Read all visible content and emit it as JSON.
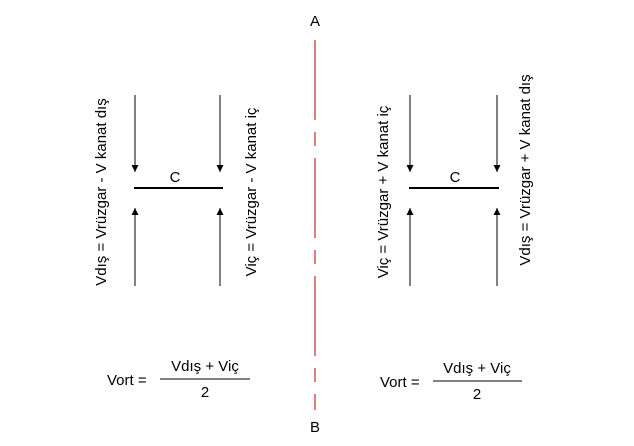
{
  "points": {
    "top": "A",
    "bottom": "B"
  },
  "left": {
    "center": "C",
    "outer_label": "Vdış = Vrüzgar - V kanat dış",
    "inner_label": "Viç = Vrüzgar - V kanat iç",
    "formula": {
      "lhs": "Vort =",
      "numerator": "Vdış + Viç",
      "denominator": "2"
    }
  },
  "right": {
    "center": "C",
    "inner_label": "Viç = Vrüzgar + V kanat iç",
    "outer_label": "Vdış = Vrüzgar + V kanat dış",
    "formula": {
      "lhs": "Vort =",
      "numerator": "Vdış + Viç",
      "denominator": "2"
    }
  }
}
